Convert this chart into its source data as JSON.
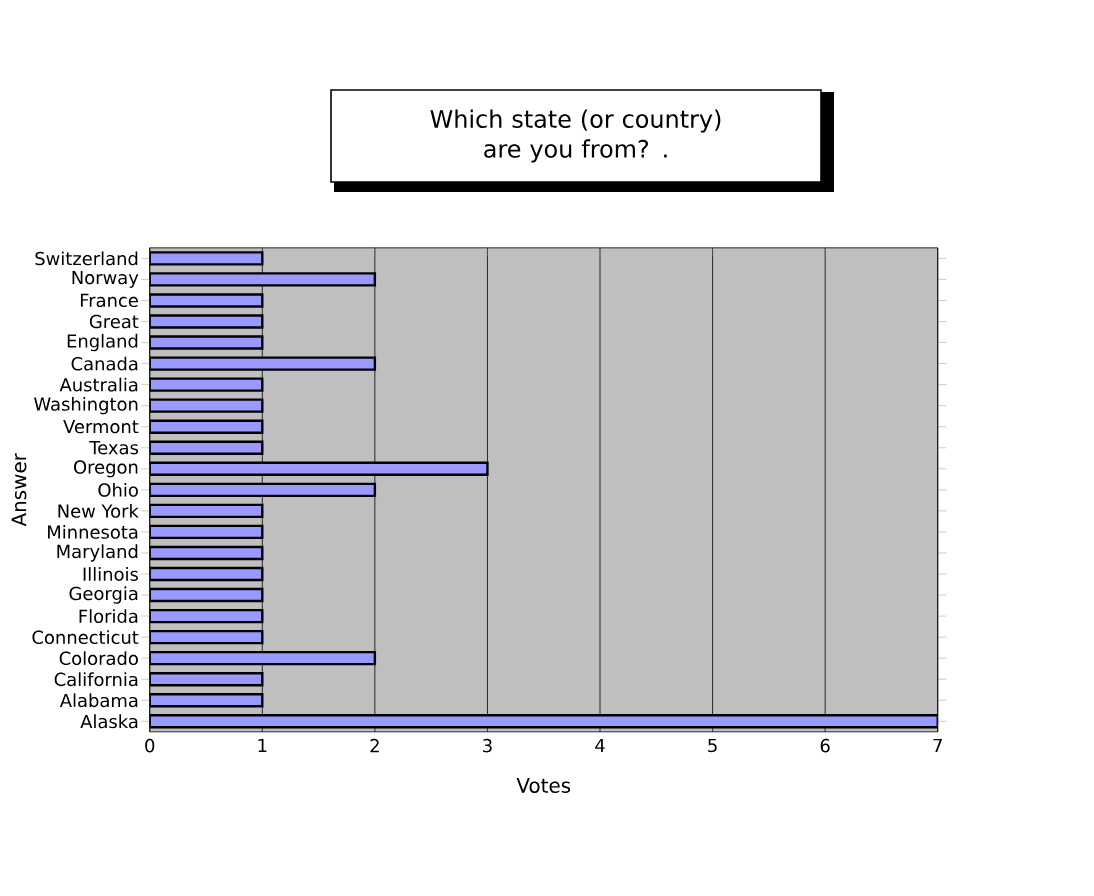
{
  "chart_data": {
    "type": "bar",
    "orientation": "horizontal",
    "title": "Which state (or country) are you from? .",
    "xlabel": "Votes",
    "ylabel": "Answer",
    "categories": [
      "Switzerland",
      "Norway",
      "France",
      "Great",
      "England",
      "Canada",
      "Australia",
      "Washington",
      "Vermont",
      "Texas",
      "Oregon",
      "Ohio",
      "New York",
      "Minnesota",
      "Maryland",
      "Illinois",
      "Georgia",
      "Florida",
      "Connecticut",
      "Colorado",
      "California",
      "Alabama",
      "Alaska"
    ],
    "values": [
      1,
      2,
      1,
      1,
      1,
      2,
      1,
      1,
      1,
      1,
      3,
      2,
      1,
      1,
      1,
      1,
      1,
      1,
      1,
      2,
      1,
      1,
      7
    ],
    "color": "#9999ff",
    "xlim": [
      0,
      7
    ],
    "xticks": [
      0,
      1,
      2,
      3,
      4,
      5,
      6,
      7
    ],
    "grid": "x"
  }
}
